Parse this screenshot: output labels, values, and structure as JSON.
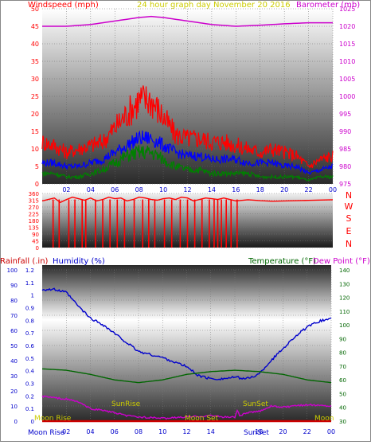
{
  "colors": {
    "wind_red": "#ff0000",
    "wind_blue": "#0000ff",
    "wind_green": "#008000",
    "barometer": "#cc00cc",
    "title_yellow": "#cccc00",
    "humidity": "#0000cc",
    "temperature": "#006600",
    "dewpoint": "#cc00cc",
    "rain": "#cc0000",
    "astro": "#cccc00"
  },
  "header": {
    "wind_label": "Windspeed (mph)",
    "title": "24 hour graph day   November 20 2016",
    "baro_label": "Barometer (mb)"
  },
  "direction_labels": [
    "N",
    "W",
    "S",
    "E",
    "N"
  ],
  "bottom_header": {
    "rain_label": "Rainfall (.in)",
    "humidity_label": "Humidity (%)",
    "temp_label": "Temperature (°F)",
    "dew_label": "Dew Point (°F)"
  },
  "astro": {
    "moon_rise_top": "Moon Rise",
    "sunrise": "SunRise",
    "sunset": "SunSet",
    "moon_set": "Moon Set",
    "moon_rise_bottom": "Moon Rise",
    "sunset_bottom": "SunSet",
    "moon_right": "Moon"
  },
  "chart_data": [
    {
      "type": "line",
      "name_key": "wind_baro",
      "x_ticks": [
        "02",
        "04",
        "06",
        "08",
        "10",
        "12",
        "14",
        "16",
        "18",
        "20",
        "22",
        "00"
      ],
      "y_left": {
        "label": "Windspeed (mph)",
        "ylim": [
          0,
          50
        ],
        "ticks": [
          0,
          5,
          10,
          15,
          20,
          25,
          30,
          35,
          40,
          45,
          50
        ]
      },
      "y_right": {
        "label": "Barometer (mb)",
        "ylim": [
          975,
          1025
        ],
        "ticks": [
          975,
          980,
          985,
          990,
          995,
          1000,
          1005,
          1010,
          1015,
          1020,
          1025
        ]
      },
      "series": [
        {
          "color_key": "barometer",
          "axis": "right",
          "x": [
            0,
            2,
            4,
            6,
            8,
            9,
            10,
            12,
            14,
            16,
            18,
            20,
            22,
            24
          ],
          "values": [
            1020,
            1020,
            1020.5,
            1021.5,
            1022.5,
            1022.8,
            1022.5,
            1021.5,
            1020.5,
            1020,
            1020.3,
            1020.7,
            1021,
            1021
          ]
        },
        {
          "color_key": "wind_red",
          "axis": "left",
          "x": [
            0,
            1,
            2,
            3,
            4,
            5,
            6,
            7,
            8,
            9,
            10,
            11,
            12,
            13,
            14,
            15,
            16,
            17,
            18,
            19,
            20,
            21,
            22,
            23,
            24
          ],
          "values": [
            12,
            11,
            9,
            10,
            11,
            12,
            16,
            20,
            24,
            24,
            19,
            14,
            13,
            13,
            12,
            12,
            11,
            10,
            9,
            10,
            9,
            8,
            5,
            7,
            8
          ]
        },
        {
          "color_key": "wind_blue",
          "axis": "left",
          "x": [
            0,
            1,
            2,
            3,
            4,
            5,
            6,
            7,
            8,
            9,
            10,
            11,
            12,
            13,
            14,
            15,
            16,
            17,
            18,
            19,
            20,
            21,
            22,
            23,
            24
          ],
          "values": [
            6,
            6,
            5,
            5,
            6,
            7,
            9,
            11,
            13,
            13,
            11,
            9,
            8,
            8,
            7,
            7,
            7,
            6,
            6,
            6,
            5,
            5,
            3,
            4,
            5
          ]
        },
        {
          "color_key": "wind_green",
          "axis": "left",
          "x": [
            0,
            1,
            2,
            3,
            4,
            5,
            6,
            7,
            8,
            9,
            10,
            11,
            12,
            13,
            14,
            15,
            16,
            17,
            18,
            19,
            20,
            21,
            22,
            23,
            24
          ],
          "values": [
            3,
            3,
            2,
            2,
            3,
            4,
            6,
            8,
            9,
            9,
            7,
            5,
            4,
            4,
            3,
            3,
            3,
            3,
            2,
            2,
            2,
            2,
            1,
            2,
            2
          ]
        }
      ]
    },
    {
      "type": "scatter",
      "name_key": "wind_direction",
      "y_ticks": [
        0,
        45,
        90,
        135,
        180,
        225,
        270,
        315,
        360
      ],
      "ylim": [
        0,
        360
      ],
      "x": [
        0,
        0.5,
        1,
        1.5,
        2,
        2.5,
        3,
        3.5,
        4,
        4.5,
        5,
        5.5,
        6,
        6.5,
        7,
        7.5,
        8,
        8.5,
        9,
        9.5,
        10,
        10.5,
        11,
        11.5,
        12,
        12.5,
        13,
        13.5,
        14,
        14.5,
        15,
        15.5,
        16,
        17,
        18,
        19,
        20,
        21,
        22,
        23,
        24
      ],
      "values": [
        310,
        320,
        330,
        300,
        320,
        335,
        325,
        315,
        330,
        310,
        320,
        335,
        325,
        330,
        310,
        320,
        335,
        330,
        320,
        315,
        325,
        330,
        320,
        335,
        330,
        310,
        320,
        330,
        325,
        320,
        330,
        320,
        310,
        318,
        312,
        308,
        310,
        312,
        314,
        316,
        318
      ],
      "drop_hours": [
        0.9,
        1.4,
        2.2,
        2.7,
        3.3,
        3.6,
        4.4,
        5.0,
        5.6,
        6.2,
        6.8,
        7.6,
        8.3,
        8.8,
        9.3,
        10.1,
        10.7,
        11.4,
        12.0,
        12.6,
        13.2,
        13.8,
        14.2,
        14.5,
        14.8,
        15.2,
        15.6,
        16.1
      ]
    },
    {
      "type": "line",
      "name_key": "rain_humidity_temp",
      "x_ticks": [
        "02",
        "04",
        "06",
        "08",
        "10",
        "12",
        "14",
        "16",
        "18",
        "20",
        "22",
        "00"
      ],
      "y_rain": {
        "label": "Rainfall (.in)",
        "ylim": [
          0,
          1.2
        ],
        "ticks": [
          0,
          0.1,
          0.2,
          0.3,
          0.4,
          0.5,
          0.6,
          0.7,
          0.8,
          0.9,
          1,
          1.1,
          1.2
        ]
      },
      "y_humidity": {
        "label": "Humidity (%)",
        "ylim": [
          0,
          100
        ],
        "ticks": [
          0,
          10,
          20,
          30,
          40,
          50,
          60,
          70,
          80,
          90,
          100
        ]
      },
      "y_temp": {
        "label": "Temperature (°F)",
        "ylim": [
          30,
          140
        ],
        "ticks": [
          30,
          40,
          50,
          60,
          70,
          80,
          90,
          100,
          110,
          120,
          130,
          140
        ]
      },
      "series": [
        {
          "color_key": "humidity",
          "axis": "humidity",
          "x": [
            0,
            1,
            2,
            3,
            4,
            5,
            6,
            7,
            8,
            10,
            12,
            13,
            14,
            15,
            16,
            17,
            18,
            19,
            20,
            21,
            22,
            23,
            24
          ],
          "values": [
            87,
            87,
            85,
            76,
            68,
            64,
            58,
            52,
            46,
            42,
            36,
            30,
            28,
            28,
            29,
            28,
            31,
            40,
            48,
            56,
            62,
            66,
            68
          ]
        },
        {
          "color_key": "temperature",
          "axis": "temp",
          "x": [
            0,
            2,
            4,
            6,
            8,
            10,
            12,
            14,
            16,
            18,
            20,
            22,
            24
          ],
          "values": [
            68,
            67,
            64,
            60,
            58,
            60,
            64,
            66,
            67,
            66,
            64,
            60,
            58
          ]
        },
        {
          "color_key": "dewpoint",
          "axis": "temp",
          "x": [
            0,
            1,
            2,
            3,
            4,
            5,
            6,
            7,
            8,
            10,
            12,
            14,
            15,
            16,
            16.2,
            16.4,
            17,
            18,
            19,
            20,
            22,
            24
          ],
          "values": [
            48,
            47,
            46,
            44,
            39,
            38,
            36,
            34,
            33,
            32,
            33,
            34,
            33,
            33,
            38,
            34,
            36,
            37,
            41,
            40,
            42,
            41
          ]
        },
        {
          "color_key": "rain",
          "axis": "rain",
          "x": [
            0,
            24
          ],
          "values": [
            0,
            0
          ]
        }
      ]
    }
  ]
}
